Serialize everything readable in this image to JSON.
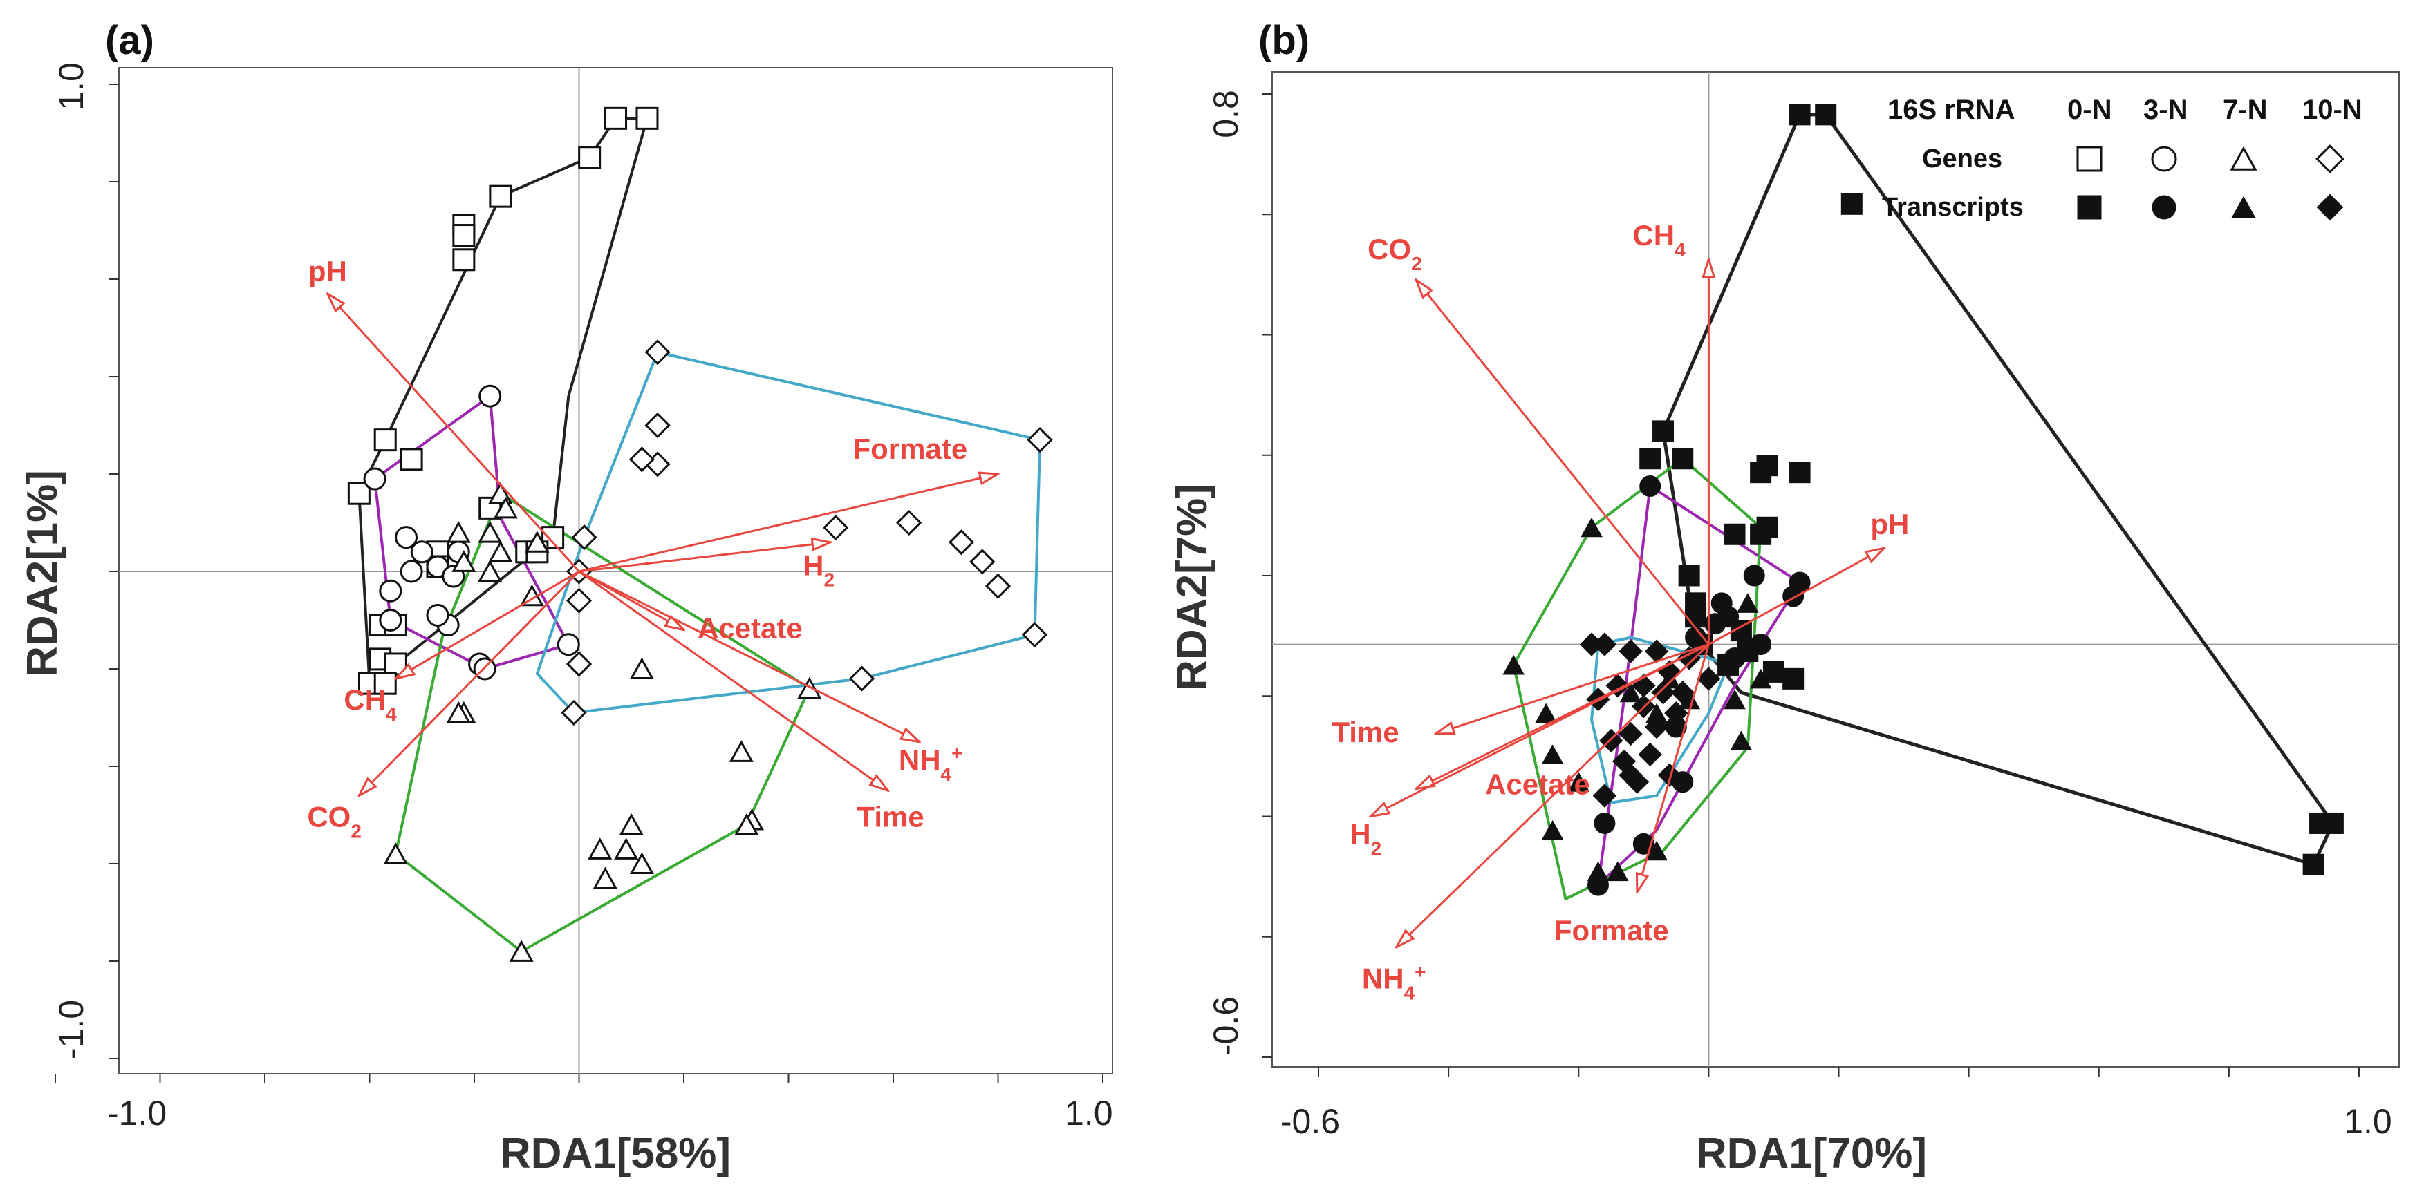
{
  "chart_data": [
    {
      "panel": "(a)",
      "type": "scatter",
      "xlabel": "RDA1[58%]",
      "ylabel": "RDA2[1%]",
      "xlim": [
        -1.0,
        1.0
      ],
      "ylim": [
        -1.0,
        1.0
      ],
      "x_ticks": [
        "-1.0",
        "1.0"
      ],
      "y_ticks": [
        "1.0",
        "-1.0"
      ],
      "arrow_color": "#e8463e",
      "arrows": [
        {
          "label": "pH",
          "x": -0.48,
          "y": 0.57
        },
        {
          "label": "Formate",
          "x": 0.8,
          "y": 0.2
        },
        {
          "label": "H2",
          "x": 0.48,
          "y": 0.06
        },
        {
          "label": "Acetate",
          "x": 0.2,
          "y": -0.12
        },
        {
          "label": "NH4+",
          "x": 0.65,
          "y": -0.35
        },
        {
          "label": "Time",
          "x": 0.59,
          "y": -0.45
        },
        {
          "label": "CH4",
          "x": -0.35,
          "y": -0.22
        },
        {
          "label": "CO2",
          "x": -0.42,
          "y": -0.46
        }
      ],
      "series": [
        {
          "name": "0-N",
          "marker": "square-open",
          "hull_color": "#222222",
          "points": [
            [
              0.07,
              0.93
            ],
            [
              0.13,
              0.93
            ],
            [
              0.02,
              0.85
            ],
            [
              -0.15,
              0.77
            ],
            [
              -0.22,
              0.71
            ],
            [
              -0.22,
              0.69
            ],
            [
              -0.22,
              0.64
            ],
            [
              -0.37,
              0.27
            ],
            [
              -0.32,
              0.23
            ],
            [
              -0.42,
              0.16
            ],
            [
              -0.17,
              0.13
            ],
            [
              -0.05,
              0.07
            ],
            [
              -0.1,
              0.04
            ],
            [
              -0.08,
              0.04
            ],
            [
              -0.27,
              0.04
            ],
            [
              -0.27,
              0.01
            ],
            [
              -0.38,
              -0.11
            ],
            [
              -0.35,
              -0.11
            ],
            [
              -0.38,
              -0.18
            ],
            [
              -0.35,
              -0.19
            ],
            [
              -0.4,
              -0.23
            ],
            [
              -0.37,
              -0.23
            ]
          ],
          "hull": [
            [
              0.07,
              0.93
            ],
            [
              0.13,
              0.93
            ],
            [
              -0.02,
              0.36
            ],
            [
              -0.05,
              0.07
            ],
            [
              -0.36,
              -0.2
            ],
            [
              -0.38,
              -0.23
            ],
            [
              -0.4,
              -0.23
            ],
            [
              -0.42,
              0.16
            ],
            [
              -0.37,
              0.27
            ],
            [
              -0.15,
              0.77
            ],
            [
              0.02,
              0.85
            ]
          ]
        },
        {
          "name": "3-N",
          "marker": "circle-open",
          "hull_color": "#9c27b0",
          "points": [
            [
              -0.17,
              0.36
            ],
            [
              -0.39,
              0.19
            ],
            [
              -0.33,
              0.07
            ],
            [
              -0.3,
              0.04
            ],
            [
              -0.23,
              0.04
            ],
            [
              -0.27,
              0.01
            ],
            [
              -0.32,
              0.0
            ],
            [
              -0.24,
              -0.01
            ],
            [
              -0.36,
              -0.04
            ],
            [
              -0.36,
              -0.1
            ],
            [
              -0.25,
              -0.11
            ],
            [
              -0.19,
              -0.19
            ],
            [
              -0.18,
              -0.2
            ],
            [
              -0.02,
              -0.15
            ],
            [
              -0.27,
              -0.09
            ]
          ],
          "hull": [
            [
              -0.17,
              0.36
            ],
            [
              -0.15,
              0.11
            ],
            [
              -0.02,
              -0.15
            ],
            [
              -0.18,
              -0.2
            ],
            [
              -0.36,
              -0.1
            ],
            [
              -0.39,
              0.19
            ]
          ]
        },
        {
          "name": "7-N",
          "marker": "triangle-open",
          "hull_color": "#3aaa35",
          "points": [
            [
              -0.15,
              0.16
            ],
            [
              -0.09,
              -0.05
            ],
            [
              -0.17,
              0.08
            ],
            [
              -0.23,
              0.08
            ],
            [
              -0.15,
              0.04
            ],
            [
              -0.08,
              0.06
            ],
            [
              -0.17,
              0.0
            ],
            [
              -0.22,
              0.02
            ],
            [
              0.12,
              -0.2
            ],
            [
              0.31,
              -0.37
            ],
            [
              0.33,
              -0.51
            ],
            [
              0.1,
              -0.52
            ],
            [
              0.09,
              -0.57
            ],
            [
              0.12,
              -0.6
            ],
            [
              0.04,
              -0.57
            ],
            [
              0.05,
              -0.63
            ],
            [
              -0.22,
              -0.29
            ],
            [
              -0.23,
              -0.29
            ],
            [
              0.44,
              -0.24
            ],
            [
              0.32,
              -0.52
            ],
            [
              -0.11,
              -0.78
            ],
            [
              -0.35,
              -0.58
            ],
            [
              -0.14,
              0.13
            ]
          ],
          "hull": [
            [
              -0.15,
              0.16
            ],
            [
              0.44,
              -0.24
            ],
            [
              0.32,
              -0.52
            ],
            [
              -0.11,
              -0.78
            ],
            [
              -0.35,
              -0.58
            ],
            [
              -0.26,
              -0.13
            ]
          ]
        },
        {
          "name": "10-N",
          "marker": "diamond-open",
          "hull_color": "#44a8c8",
          "points": [
            [
              0.15,
              0.45
            ],
            [
              0.15,
              0.3
            ],
            [
              0.15,
              0.22
            ],
            [
              0.49,
              0.09
            ],
            [
              0.63,
              0.1
            ],
            [
              0.73,
              0.06
            ],
            [
              0.77,
              0.02
            ],
            [
              0.8,
              -0.03
            ],
            [
              0.88,
              0.27
            ],
            [
              0.87,
              -0.13
            ],
            [
              0.54,
              -0.22
            ],
            [
              -0.01,
              -0.29
            ],
            [
              0.12,
              0.23
            ],
            [
              0.0,
              -0.06
            ],
            [
              0.01,
              0.07
            ],
            [
              0.0,
              -0.19
            ],
            [
              0.0,
              0.0
            ]
          ],
          "hull": [
            [
              0.15,
              0.45
            ],
            [
              0.88,
              0.27
            ],
            [
              0.87,
              -0.13
            ],
            [
              0.54,
              -0.22
            ],
            [
              -0.01,
              -0.29
            ],
            [
              -0.08,
              -0.21
            ],
            [
              0.01,
              0.07
            ]
          ]
        }
      ]
    },
    {
      "panel": "(b)",
      "type": "scatter",
      "xlabel": "RDA1[70%]",
      "ylabel": "RDA2[7%]",
      "xlim": [
        -0.6,
        1.0
      ],
      "ylim": [
        -0.6,
        0.8
      ],
      "x_ticks": [
        "-0.6",
        "1.0"
      ],
      "y_ticks": [
        "0.8",
        "-0.6"
      ],
      "arrow_color": "#e8463e",
      "arrows": [
        {
          "label": "CO2",
          "x": -0.45,
          "y": 0.53
        },
        {
          "label": "CH4",
          "x": 0.0,
          "y": 0.56
        },
        {
          "label": "pH",
          "x": 0.27,
          "y": 0.14
        },
        {
          "label": "Time",
          "x": -0.42,
          "y": -0.13
        },
        {
          "label": "Acetate",
          "x": -0.45,
          "y": -0.21
        },
        {
          "label": "H2",
          "x": -0.52,
          "y": -0.25
        },
        {
          "label": "NH4+",
          "x": -0.48,
          "y": -0.44
        },
        {
          "label": "Formate",
          "x": -0.11,
          "y": -0.36
        }
      ],
      "legend": {
        "columns": [
          "16S rRNA",
          "0-N",
          "3-N",
          "7-N",
          "10-N"
        ],
        "rows": [
          "Genes",
          "Transcripts"
        ]
      },
      "series": [
        {
          "name": "0-N",
          "marker": "square-filled",
          "hull_color": "#222222",
          "points": [
            [
              0.14,
              0.77
            ],
            [
              0.18,
              0.77
            ],
            [
              0.22,
              0.64
            ],
            [
              -0.07,
              0.31
            ],
            [
              -0.09,
              0.27
            ],
            [
              -0.04,
              0.27
            ],
            [
              0.08,
              0.25
            ],
            [
              0.09,
              0.26
            ],
            [
              0.14,
              0.25
            ],
            [
              -0.03,
              0.1
            ],
            [
              0.04,
              0.16
            ],
            [
              0.09,
              0.17
            ],
            [
              0.08,
              0.16
            ],
            [
              -0.02,
              0.04
            ],
            [
              -0.01,
              0.0
            ],
            [
              0.06,
              -0.01
            ],
            [
              0.03,
              -0.03
            ],
            [
              0.1,
              -0.04
            ],
            [
              0.13,
              -0.05
            ],
            [
              0.94,
              -0.26
            ],
            [
              0.96,
              -0.26
            ],
            [
              0.93,
              -0.32
            ],
            [
              -0.02,
              0.06
            ],
            [
              0.05,
              0.02
            ]
          ],
          "hull": [
            [
              0.14,
              0.77
            ],
            [
              0.18,
              0.77
            ],
            [
              0.96,
              -0.26
            ],
            [
              0.93,
              -0.32
            ],
            [
              0.05,
              -0.07
            ],
            [
              -0.02,
              0.01
            ],
            [
              -0.07,
              0.31
            ]
          ]
        },
        {
          "name": "3-N",
          "marker": "circle-filled",
          "hull_color": "#9c27b0",
          "points": [
            [
              -0.09,
              0.23
            ],
            [
              0.14,
              0.09
            ],
            [
              0.13,
              0.07
            ],
            [
              0.07,
              0.1
            ],
            [
              0.02,
              0.06
            ],
            [
              0.01,
              0.03
            ],
            [
              0.08,
              0.0
            ],
            [
              0.04,
              -0.02
            ],
            [
              -0.02,
              0.01
            ],
            [
              -0.16,
              -0.26
            ],
            [
              -0.17,
              -0.35
            ],
            [
              -0.1,
              -0.29
            ],
            [
              -0.04,
              -0.2
            ],
            [
              -0.05,
              -0.12
            ],
            [
              0.03,
              0.04
            ]
          ],
          "hull": [
            [
              -0.09,
              0.23
            ],
            [
              0.14,
              0.09
            ],
            [
              0.04,
              -0.06
            ],
            [
              -0.08,
              -0.27
            ],
            [
              -0.17,
              -0.35
            ],
            [
              -0.13,
              -0.08
            ]
          ]
        },
        {
          "name": "7-N",
          "marker": "triangle-filled",
          "hull_color": "#3aaa35",
          "points": [
            [
              -0.18,
              0.17
            ],
            [
              -0.04,
              0.27
            ],
            [
              0.08,
              0.17
            ],
            [
              -0.3,
              -0.03
            ],
            [
              -0.25,
              -0.1
            ],
            [
              -0.24,
              -0.16
            ],
            [
              -0.2,
              -0.2
            ],
            [
              -0.17,
              -0.33
            ],
            [
              -0.14,
              -0.33
            ],
            [
              -0.08,
              -0.3
            ],
            [
              -0.24,
              -0.27
            ],
            [
              -0.03,
              -0.08
            ],
            [
              -0.12,
              -0.07
            ],
            [
              0.05,
              -0.14
            ],
            [
              0.08,
              -0.05
            ],
            [
              0.07,
              0.0
            ],
            [
              -0.06,
              -0.05
            ],
            [
              -0.08,
              -0.1
            ],
            [
              0.04,
              -0.08
            ],
            [
              0.06,
              0.06
            ]
          ],
          "hull": [
            [
              -0.18,
              0.17
            ],
            [
              -0.04,
              0.27
            ],
            [
              0.08,
              0.17
            ],
            [
              0.06,
              -0.15
            ],
            [
              -0.07,
              -0.3
            ],
            [
              -0.22,
              -0.37
            ],
            [
              -0.3,
              -0.03
            ]
          ]
        },
        {
          "name": "10-N",
          "marker": "diamond-filled",
          "hull_color": "#44a8c8",
          "points": [
            [
              -0.18,
              0.0
            ],
            [
              -0.16,
              0.0
            ],
            [
              -0.12,
              -0.01
            ],
            [
              -0.08,
              -0.01
            ],
            [
              -0.03,
              -0.02
            ],
            [
              -0.06,
              -0.04
            ],
            [
              -0.1,
              -0.06
            ],
            [
              -0.14,
              -0.06
            ],
            [
              -0.17,
              -0.08
            ],
            [
              -0.1,
              -0.09
            ],
            [
              -0.05,
              -0.1
            ],
            [
              -0.08,
              -0.12
            ],
            [
              -0.12,
              -0.13
            ],
            [
              -0.15,
              -0.14
            ],
            [
              -0.09,
              -0.16
            ],
            [
              -0.13,
              -0.17
            ],
            [
              -0.06,
              -0.19
            ],
            [
              -0.11,
              -0.2
            ],
            [
              -0.16,
              -0.22
            ],
            [
              -0.04,
              -0.07
            ],
            [
              0.0,
              -0.05
            ],
            [
              -0.12,
              -0.19
            ],
            [
              -0.07,
              -0.07
            ]
          ],
          "hull": [
            [
              -0.17,
              0.0
            ],
            [
              -0.12,
              0.01
            ],
            [
              0.0,
              -0.02
            ],
            [
              0.03,
              -0.03
            ],
            [
              0.0,
              -0.1
            ],
            [
              -0.08,
              -0.22
            ],
            [
              -0.15,
              -0.23
            ],
            [
              -0.18,
              -0.11
            ]
          ]
        }
      ]
    }
  ]
}
